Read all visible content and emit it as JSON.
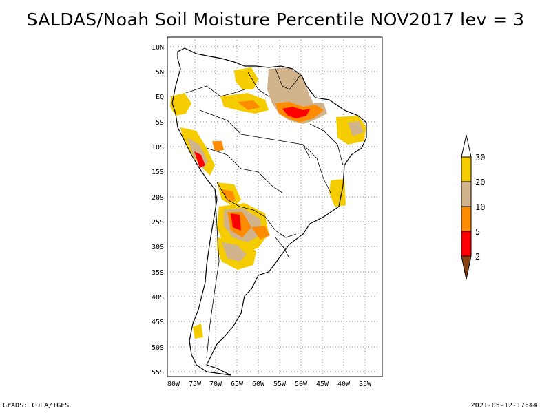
{
  "title": "SALDAS/Noah Soil Moisture Percentile NOV2017 lev = 3",
  "footer": {
    "left": "GrADS: COLA/IGES",
    "right": "2021-05-12-17:44"
  },
  "map": {
    "lon_labels": [
      "80W",
      "75W",
      "70W",
      "65W",
      "60W",
      "55W",
      "50W",
      "45W",
      "40W",
      "35W"
    ],
    "lat_labels": [
      "10N",
      "5N",
      "EQ",
      "5S",
      "10S",
      "15S",
      "20S",
      "25S",
      "30S",
      "35S",
      "40S",
      "45S",
      "50S",
      "55S"
    ]
  },
  "legend": {
    "labels": [
      "30",
      "20",
      "10",
      "5",
      "2"
    ],
    "colors": {
      "above30": "#ffffff",
      "c20_30": "#f5cc00",
      "c10_20": "#d2b48c",
      "c5_10": "#ff8c00",
      "c2_5": "#ff0000",
      "below2": "#8b4513"
    }
  },
  "colors": {
    "gridline": "#888888",
    "coastline": "#000000"
  }
}
